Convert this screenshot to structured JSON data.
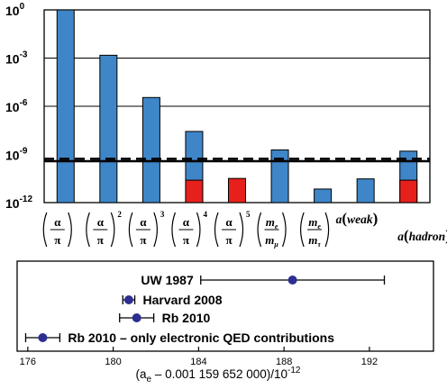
{
  "chart_data": [
    {
      "type": "bar",
      "scale": "log",
      "ylim": [
        1e-12,
        1
      ],
      "y_ticks": [
        {
          "value": 1,
          "base": "10",
          "exp": "0"
        },
        {
          "value": 0.001,
          "base": "10",
          "exp": "-3"
        },
        {
          "value": 1e-06,
          "base": "10",
          "exp": "-6"
        },
        {
          "value": 1e-09,
          "base": "10",
          "exp": "-9"
        },
        {
          "value": 1e-12,
          "base": "10",
          "exp": "-12"
        }
      ],
      "grid": "horizontal lines at 1e-3 and 1e-6",
      "categories": [
        {
          "type": "power",
          "num": "α",
          "den": "π",
          "exp": ""
        },
        {
          "type": "power",
          "num": "α",
          "den": "π",
          "exp": "2"
        },
        {
          "type": "power",
          "num": "α",
          "den": "π",
          "exp": "3"
        },
        {
          "type": "power",
          "num": "α",
          "den": "π",
          "exp": "4"
        },
        {
          "type": "power",
          "num": "α",
          "den": "π",
          "exp": "5"
        },
        {
          "type": "ratio",
          "num": "m",
          "num_sub": "e",
          "den": "m",
          "den_sub": "μ"
        },
        {
          "type": "ratio",
          "num": "m",
          "num_sub": "e",
          "den": "m",
          "den_sub": "τ"
        },
        {
          "type": "text",
          "prefix": "a",
          "label": "weak"
        },
        {
          "type": "text",
          "prefix": "a",
          "label": "hadron"
        }
      ],
      "series": [
        {
          "color": "#3f86c8",
          "values": [
            1.2,
            0.0015,
            3.5e-06,
            2.7e-08,
            null,
            1.9e-09,
            7e-12,
            3e-11,
            1.6e-09
          ]
        },
        {
          "color": "#e8201c",
          "values": [
            null,
            null,
            null,
            2.5e-11,
            3.2e-11,
            null,
            null,
            null,
            2.5e-11
          ]
        }
      ],
      "reference_lines": [
        {
          "value": 5.3e-10,
          "style": "dashed"
        },
        {
          "value": 3.8e-10,
          "style": "solid"
        }
      ]
    },
    {
      "type": "scatter",
      "xlim": [
        175.5,
        195
      ],
      "x_ticks": [
        176,
        180,
        184,
        188,
        192
      ],
      "xlabel": {
        "a": "(a",
        "sub": "e",
        "rest": " – 0.001 159 652 000)/10",
        "exp": "-12"
      },
      "marker_color": "#2d2e91",
      "points": [
        {
          "label": "UW 1987",
          "x": 188.4,
          "xerr": 4.3
        },
        {
          "label": "Harvard 2008",
          "x": 180.73,
          "xerr": 0.28
        },
        {
          "label": "Rb 2010",
          "x": 181.1,
          "xerr": 0.8
        },
        {
          "label": "Rb 2010 – only electronic QED contributions",
          "x": 176.7,
          "xerr": 0.8
        }
      ]
    }
  ]
}
